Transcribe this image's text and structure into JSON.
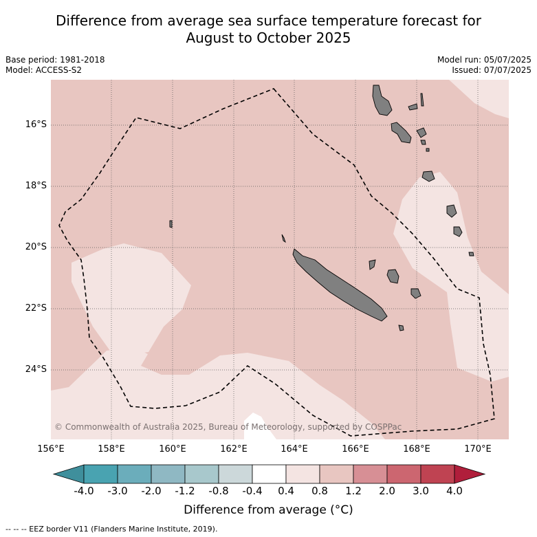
{
  "title_line1": "Difference from average sea surface temperature forecast for",
  "title_line2": "August to October 2025",
  "meta": {
    "base_period": "Base period: 1981-2018",
    "model": "Model: ACCESS-S2",
    "model_run": "Model run: 05/07/2025",
    "issued": "Issued: 07/07/2025"
  },
  "copyright": "© Commonwealth of Australia 2025, Bureau of Meteorology, supported by COSPPac",
  "lat_ticks": [
    "16°S",
    "18°S",
    "20°S",
    "22°S",
    "24°S"
  ],
  "lon_ticks": [
    "156°E",
    "158°E",
    "160°E",
    "162°E",
    "164°E",
    "166°E",
    "168°E",
    "170°E"
  ],
  "colorbar": {
    "ticks": [
      "-4.0",
      "-3.0",
      "-2.0",
      "-1.2",
      "-0.8",
      "-0.4",
      "0.4",
      "0.8",
      "1.2",
      "2.0",
      "3.0",
      "4.0"
    ],
    "colors": [
      "#3f8f9c",
      "#49a3b1",
      "#6badbb",
      "#8fb8c3",
      "#a8c8cc",
      "#ccd8da",
      "#ffffff",
      "#f4e4e2",
      "#e8c6c1",
      "#d78f95",
      "#cc6670",
      "#bf4352",
      "#b01e3b"
    ],
    "title": "Difference from average (°C)"
  },
  "legend_footer": "-- -- -- EEZ border V11 (Flanders Marine Institute, 2019).",
  "map": {
    "background_category": "0.8 to 1.2",
    "background_color": "#e8c6c1",
    "light_category": "0.4 to 0.8",
    "light_color": "#f4e4e2",
    "land_color": "#808080",
    "land_names": [
      "new-caledonia",
      "vanuatu",
      "loyalty-islands"
    ]
  }
}
